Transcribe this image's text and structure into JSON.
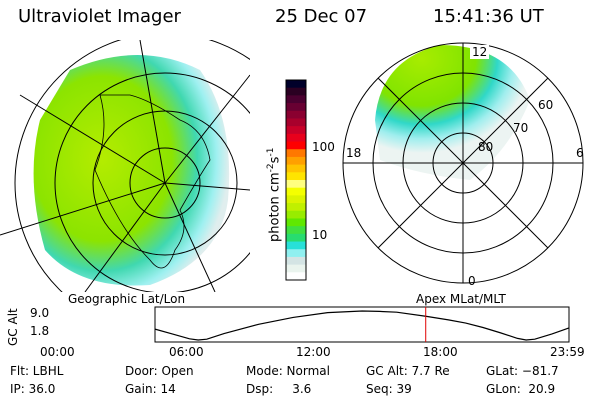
{
  "header": {
    "instrument": "Ultraviolet Imager",
    "date": "25 Dec 07",
    "time": "15:41:36 UT"
  },
  "left_map": {
    "caption": "Geographic Lat/Lon"
  },
  "right_map": {
    "caption": "Apex MLat/MLT",
    "mlt_labels": {
      "top": "12",
      "left": "18",
      "right": "6",
      "bottom": "0"
    },
    "lat_labels": [
      "60",
      "70",
      "80"
    ]
  },
  "colorbar": {
    "label": "photon cm",
    "exp1": "-2",
    "unit2": "s",
    "exp2": "-1",
    "ticks": [
      "100",
      "10"
    ],
    "scale": "log",
    "colors": [
      "#00002a",
      "#2a0022",
      "#4a0030",
      "#680032",
      "#8a0030",
      "#a8002c",
      "#c80028",
      "#e8001c",
      "#ff0000",
      "#ff7800",
      "#ffa000",
      "#ffc400",
      "#ffe400",
      "#ffff80",
      "#f4ff00",
      "#dcf400",
      "#c0f000",
      "#98ec00",
      "#60e800",
      "#40e040",
      "#28dc70",
      "#28e0d8",
      "#90f0f0",
      "#d4e4e4",
      "#eaf4ee",
      "#ffffff"
    ]
  },
  "chart_data": {
    "type": "line",
    "ylabel": "GC Alt",
    "yticks": [
      "9.0",
      "1.8"
    ],
    "ylim": [
      1.8,
      9.0
    ],
    "xticks": [
      "00:00",
      "06:00",
      "12:00",
      "18:00",
      "23:59"
    ],
    "x": [
      "00:00",
      "01:00",
      "02:00",
      "02:30",
      "03:00",
      "04:00",
      "06:00",
      "08:00",
      "10:00",
      "12:00",
      "13:00",
      "14:00",
      "15:41",
      "17:00",
      "18:00",
      "19:00",
      "20:00",
      "21:00",
      "21:30",
      "22:00",
      "23:00",
      "23:59"
    ],
    "values": [
      4.5,
      3.3,
      2.1,
      1.8,
      2.0,
      3.4,
      5.7,
      7.4,
      8.6,
      9.0,
      8.9,
      8.7,
      7.7,
      6.8,
      6.0,
      4.9,
      3.6,
      2.2,
      1.8,
      2.0,
      3.3,
      4.8
    ],
    "current_time": "15:41",
    "current_marker_color": "#e00000"
  },
  "status": {
    "row1": [
      "Flt: LBHL",
      "Door: Open",
      "Mode: Normal",
      "GC Alt: 7.7 Re",
      "GLat: −81.7"
    ],
    "row2": [
      "IP: 36.0",
      "Gain: 14",
      "Dsp:     3.6",
      "Seq: 39",
      "GLon:  20.9"
    ]
  }
}
